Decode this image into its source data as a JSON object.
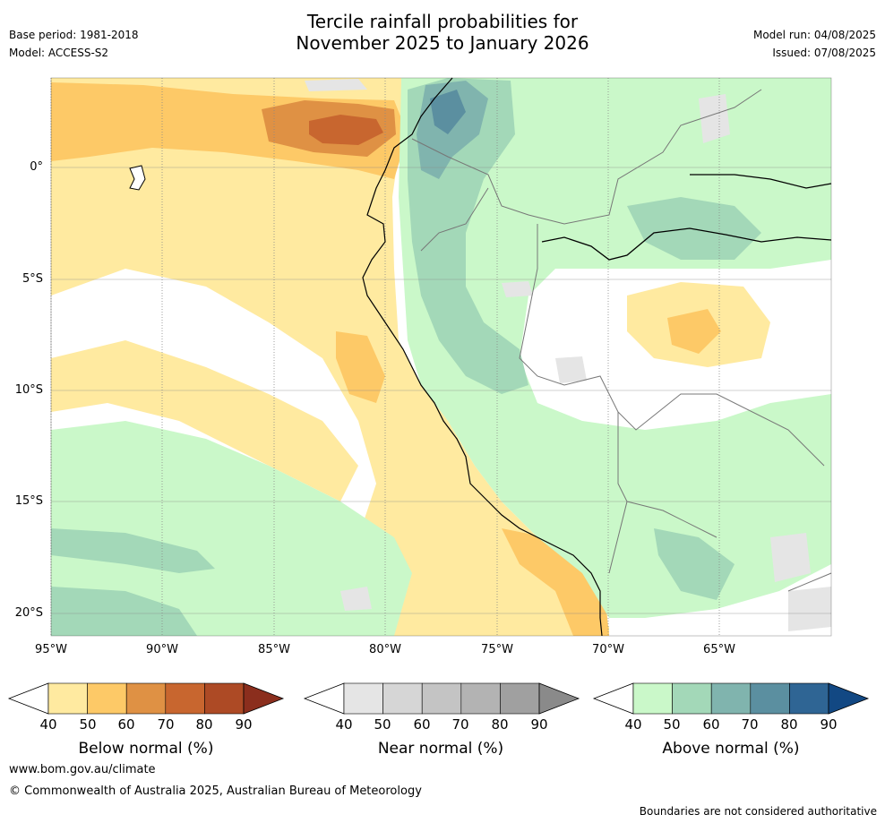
{
  "header": {
    "title_line1": "Tercile rainfall probabilities for",
    "title_line2": "November 2025 to January 2026",
    "base_period": "Base period: 1981-2018",
    "model": "Model: ACCESS-S2",
    "model_run": "Model run: 04/08/2025",
    "issued": "Issued: 07/08/2025"
  },
  "map": {
    "x_ticks": [
      "95°W",
      "90°W",
      "85°W",
      "80°W",
      "75°W",
      "70°W",
      "65°W"
    ],
    "y_ticks": [
      "0°",
      "5°S",
      "10°S",
      "15°S",
      "20°S"
    ]
  },
  "legends": [
    {
      "title": "Below normal (%)",
      "ticks": [
        "40",
        "50",
        "60",
        "70",
        "80",
        "90"
      ],
      "colors": [
        "#ffeaa0",
        "#fdc967",
        "#df9144",
        "#c8662f",
        "#ad4a25",
        "#8b2e1d"
      ]
    },
    {
      "title": "Near normal (%)",
      "ticks": [
        "40",
        "50",
        "60",
        "70",
        "80",
        "90"
      ],
      "colors": [
        "#e5e5e5",
        "#d6d6d6",
        "#c4c4c4",
        "#b3b3b3",
        "#a0a0a0",
        "#8a8a8a"
      ]
    },
    {
      "title": "Above normal (%)",
      "ticks": [
        "40",
        "50",
        "60",
        "70",
        "80",
        "90"
      ],
      "colors": [
        "#caf8c9",
        "#a3d8b8",
        "#80b4ae",
        "#5b8fa0",
        "#2f6594",
        "#124883"
      ]
    }
  ],
  "footer": {
    "website": "www.bom.gov.au/climate",
    "copyright": "© Commonwealth of Australia 2025, Australian Bureau of Meteorology",
    "disclaimer": "Boundaries are not considered authoritative"
  }
}
